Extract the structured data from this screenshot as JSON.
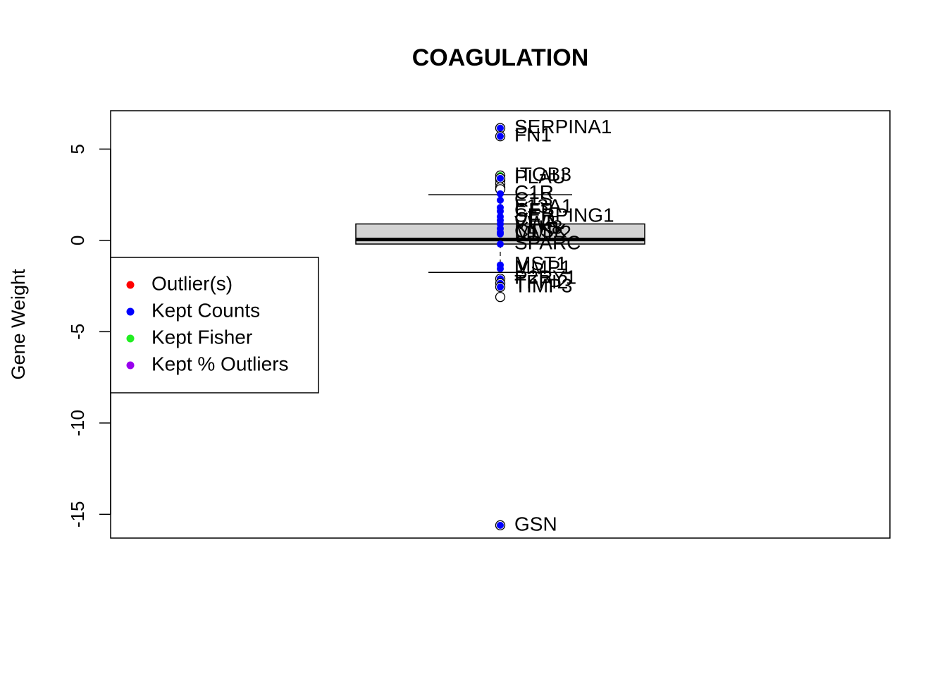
{
  "chart_data": {
    "type": "box",
    "title": "COAGULATION",
    "xlabel": "",
    "ylabel": "Gene Weight",
    "ylim": [
      -16.3,
      7.1
    ],
    "yticks": [
      5,
      0,
      -5,
      -10,
      -15
    ],
    "ytick_labels": [
      "5",
      "0",
      "-5",
      "-10",
      "-15"
    ],
    "grid": false,
    "box": {
      "q1": -0.2,
      "median": 0.05,
      "q3": 0.9,
      "whisker_low": -1.75,
      "whisker_high": 2.5
    },
    "outliers_open": [
      3.3,
      3.1,
      2.9,
      2.8,
      -3.1
    ],
    "points": [
      {
        "label": "SERPINA1",
        "value": 6.15,
        "category": "Kept Counts"
      },
      {
        "label": "FN1",
        "value": 5.7,
        "category": "Kept Counts"
      },
      {
        "label": "ITGB3",
        "value": 3.55,
        "category": "Kept Fisher"
      },
      {
        "label": "PLAU",
        "value": 3.4,
        "category": "Kept Counts"
      },
      {
        "label": "C1R",
        "value": 2.55,
        "category": "Kept Counts"
      },
      {
        "label": "C1S",
        "value": 2.2,
        "category": "Kept Counts"
      },
      {
        "label": "F13A1",
        "value": 1.8,
        "category": "Kept Counts"
      },
      {
        "label": "CFB",
        "value": 1.6,
        "category": "Kept Counts"
      },
      {
        "label": "SERPING1",
        "value": 1.3,
        "category": "Kept Counts"
      },
      {
        "label": "CFD",
        "value": 1.1,
        "category": "Kept Counts"
      },
      {
        "label": "VWF",
        "value": 0.9,
        "category": "Kept Counts"
      },
      {
        "label": "KLK8",
        "value": 0.65,
        "category": "Kept Counts"
      },
      {
        "label": "CTSK",
        "value": 0.45,
        "category": "Kept Counts"
      },
      {
        "label": "MMP2",
        "value": 0.35,
        "category": "Kept Counts"
      },
      {
        "label": "SPARC",
        "value": -0.2,
        "category": "Kept Counts"
      },
      {
        "label": "MST1",
        "value": -1.35,
        "category": "Kept Counts"
      },
      {
        "label": "MMP1",
        "value": -1.55,
        "category": "Kept Counts"
      },
      {
        "label": "P2RY1",
        "value": -2.1,
        "category": "Kept Counts"
      },
      {
        "label": "TFPI2",
        "value": -2.35,
        "category": "Kept Counts"
      },
      {
        "label": "TIMP3",
        "value": -2.55,
        "category": "Kept Counts"
      },
      {
        "label": "GSN",
        "value": -15.6,
        "category": "Kept Counts"
      }
    ],
    "legend": {
      "position": "left",
      "entries": [
        {
          "label": "Outlier(s)",
          "color": "#ff0000"
        },
        {
          "label": "Kept Counts",
          "color": "#0000ff"
        },
        {
          "label": "Kept Fisher",
          "color": "#22ee22"
        },
        {
          "label": "Kept % Outliers",
          "color": "#9900ee"
        }
      ]
    },
    "colors": {
      "box_fill": "#d3d3d3",
      "kept_counts": "#0000ff",
      "kept_fisher": "#22ee22",
      "outlier": "#ff0000",
      "kept_pct": "#9900ee"
    }
  }
}
